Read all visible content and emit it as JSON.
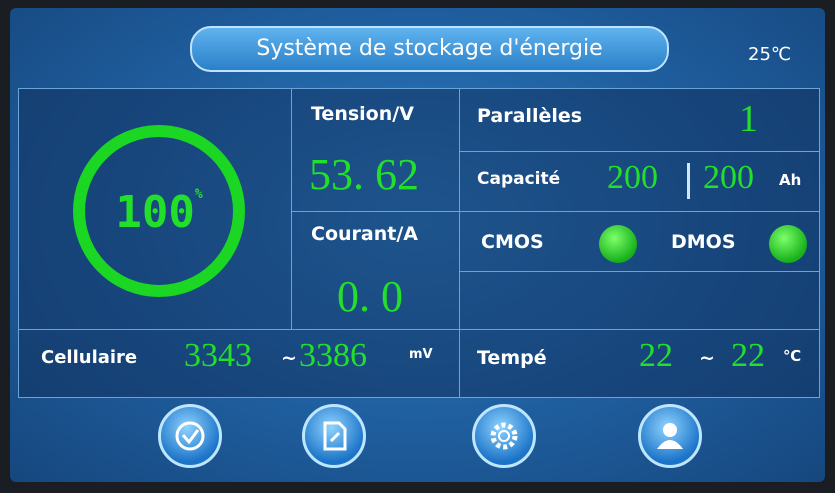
{
  "header": {
    "title": "Système de stockage d'énergie",
    "temperature": "25℃"
  },
  "battery": {
    "soc": "100",
    "soc_unit": "%"
  },
  "tension": {
    "label": "Tension/V",
    "value": "53. 62"
  },
  "courant": {
    "label": "Courant/A",
    "value": "0. 0"
  },
  "paralleles": {
    "label": "Parallèles",
    "value": "1"
  },
  "capacite": {
    "label": "Capacité",
    "remaining": "200",
    "total": "200",
    "unit": "Ah"
  },
  "switches": {
    "cmos": "CMOS",
    "dmos": "DMOS"
  },
  "cellulaire": {
    "label": "Cellulaire",
    "min": "3343",
    "separator": "~",
    "max": "3386",
    "unit": "mV"
  },
  "tempe": {
    "label": "Tempé",
    "min": "22",
    "separator": "~",
    "max": "22",
    "unit": "℃"
  }
}
